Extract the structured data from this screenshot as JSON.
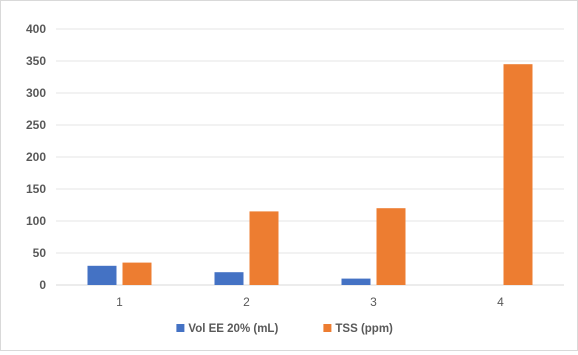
{
  "chart_data": {
    "type": "bar",
    "categories": [
      "1",
      "2",
      "3",
      "4"
    ],
    "series": [
      {
        "name": "Vol EE 20% (mL)",
        "values": [
          30,
          20,
          10,
          0
        ],
        "color": "#4472c4"
      },
      {
        "name": "TSS (ppm)",
        "values": [
          35,
          115,
          120,
          345
        ],
        "color": "#ed7d31"
      }
    ],
    "ylim": [
      0,
      400
    ],
    "yticks": [
      0,
      50,
      100,
      150,
      200,
      250,
      300,
      350,
      400
    ],
    "grid": true,
    "legend_position": "bottom"
  }
}
